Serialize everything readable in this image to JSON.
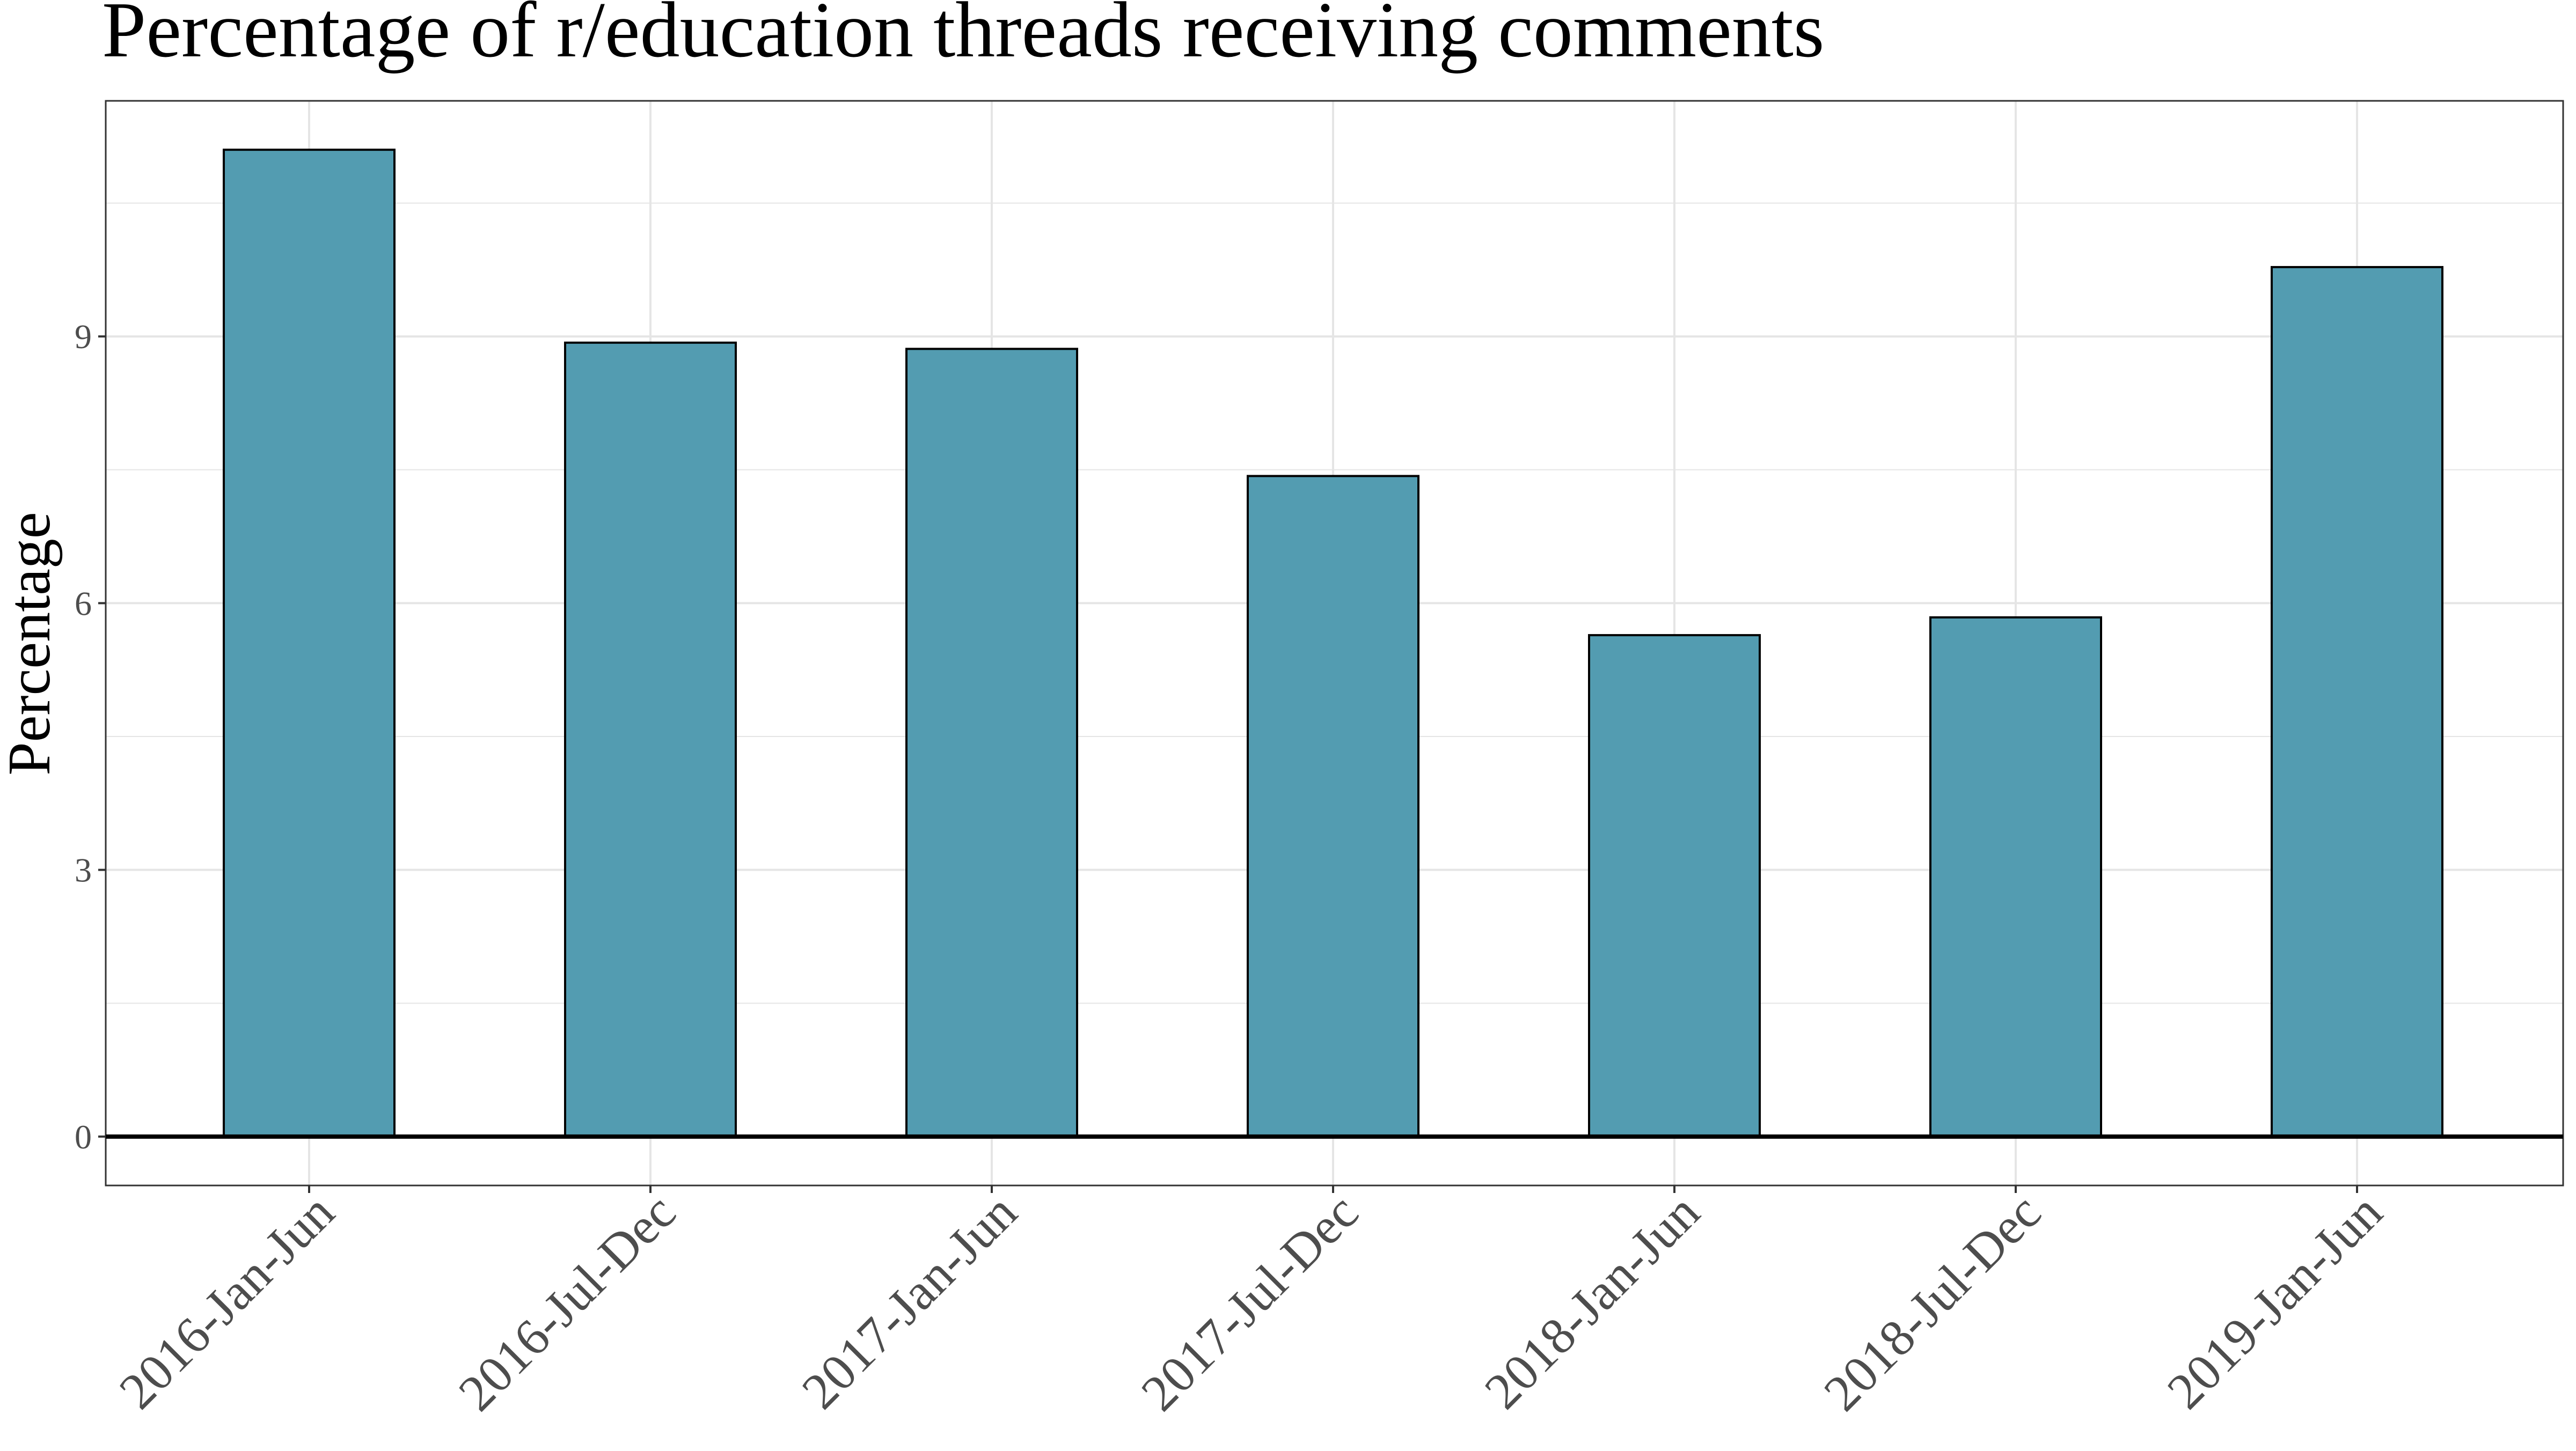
{
  "chart_data": {
    "type": "bar",
    "title": "Percentage of r/education threads receiving comments",
    "xlabel": "",
    "ylabel": "Percentage",
    "categories": [
      "2016-Jan-Jun",
      "2016-Jul-Dec",
      "2017-Jan-Jun",
      "2017-Jul-Dec",
      "2018-Jan-Jun",
      "2018-Jul-Dec",
      "2019-Jan-Jun"
    ],
    "values": [
      11.1,
      8.93,
      8.86,
      7.43,
      5.64,
      5.84,
      9.78
    ],
    "ylim": [
      -0.55,
      11.65
    ],
    "yticks": [
      0,
      3,
      6,
      9
    ],
    "ytick_labels": [
      "0",
      "3",
      "6",
      "9"
    ],
    "grid": true,
    "legend": "none",
    "bar_color": "#539CB1",
    "bar_edge_color": "#000000",
    "grid_color": "#E5E5E5",
    "axis_text_color": "#4D4D4D"
  }
}
